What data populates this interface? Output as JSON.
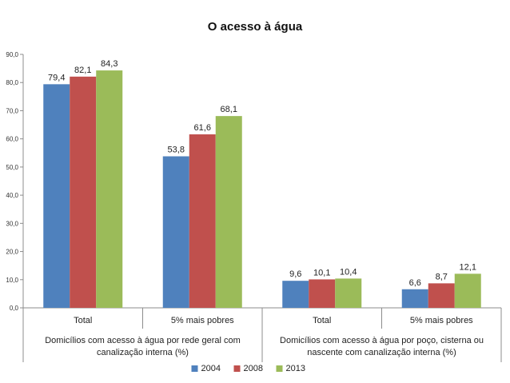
{
  "chart_data": {
    "type": "bar",
    "title": "O acesso à água",
    "xlabel": "",
    "ylabel": "",
    "ylim": [
      0,
      90
    ],
    "yticks": [
      "0,0",
      "10,0",
      "20,0",
      "30,0",
      "40,0",
      "50,0",
      "60,0",
      "70,0",
      "80,0",
      "90,0"
    ],
    "grid": false,
    "legend_position": "bottom",
    "categories": [
      "Total",
      "5% mais pobres",
      "Total",
      "5% mais pobres"
    ],
    "groups": [
      {
        "label_lines": [
          "Domicílios com acesso à água por rede geral com",
          "canalização interna (%)"
        ],
        "categories": [
          0,
          1
        ]
      },
      {
        "label_lines": [
          "Domicílios com acesso à água por poço, cisterna ou",
          "nascente com canalização interna (%)"
        ],
        "categories": [
          2,
          3
        ]
      }
    ],
    "series": [
      {
        "name": "2004",
        "color": "#4f81bd",
        "values": [
          79.4,
          53.8,
          9.6,
          6.6
        ],
        "labels": [
          "79,4",
          "53,8",
          "9,6",
          "6,6"
        ]
      },
      {
        "name": "2008",
        "color": "#c0504d",
        "values": [
          82.1,
          61.6,
          10.1,
          8.7
        ],
        "labels": [
          "82,1",
          "61,6",
          "10,1",
          "8,7"
        ]
      },
      {
        "name": "2013",
        "color": "#9bbb59",
        "values": [
          84.3,
          68.1,
          10.4,
          12.1
        ],
        "labels": [
          "84,3",
          "68,1",
          "10,4",
          "12,1"
        ]
      }
    ]
  }
}
